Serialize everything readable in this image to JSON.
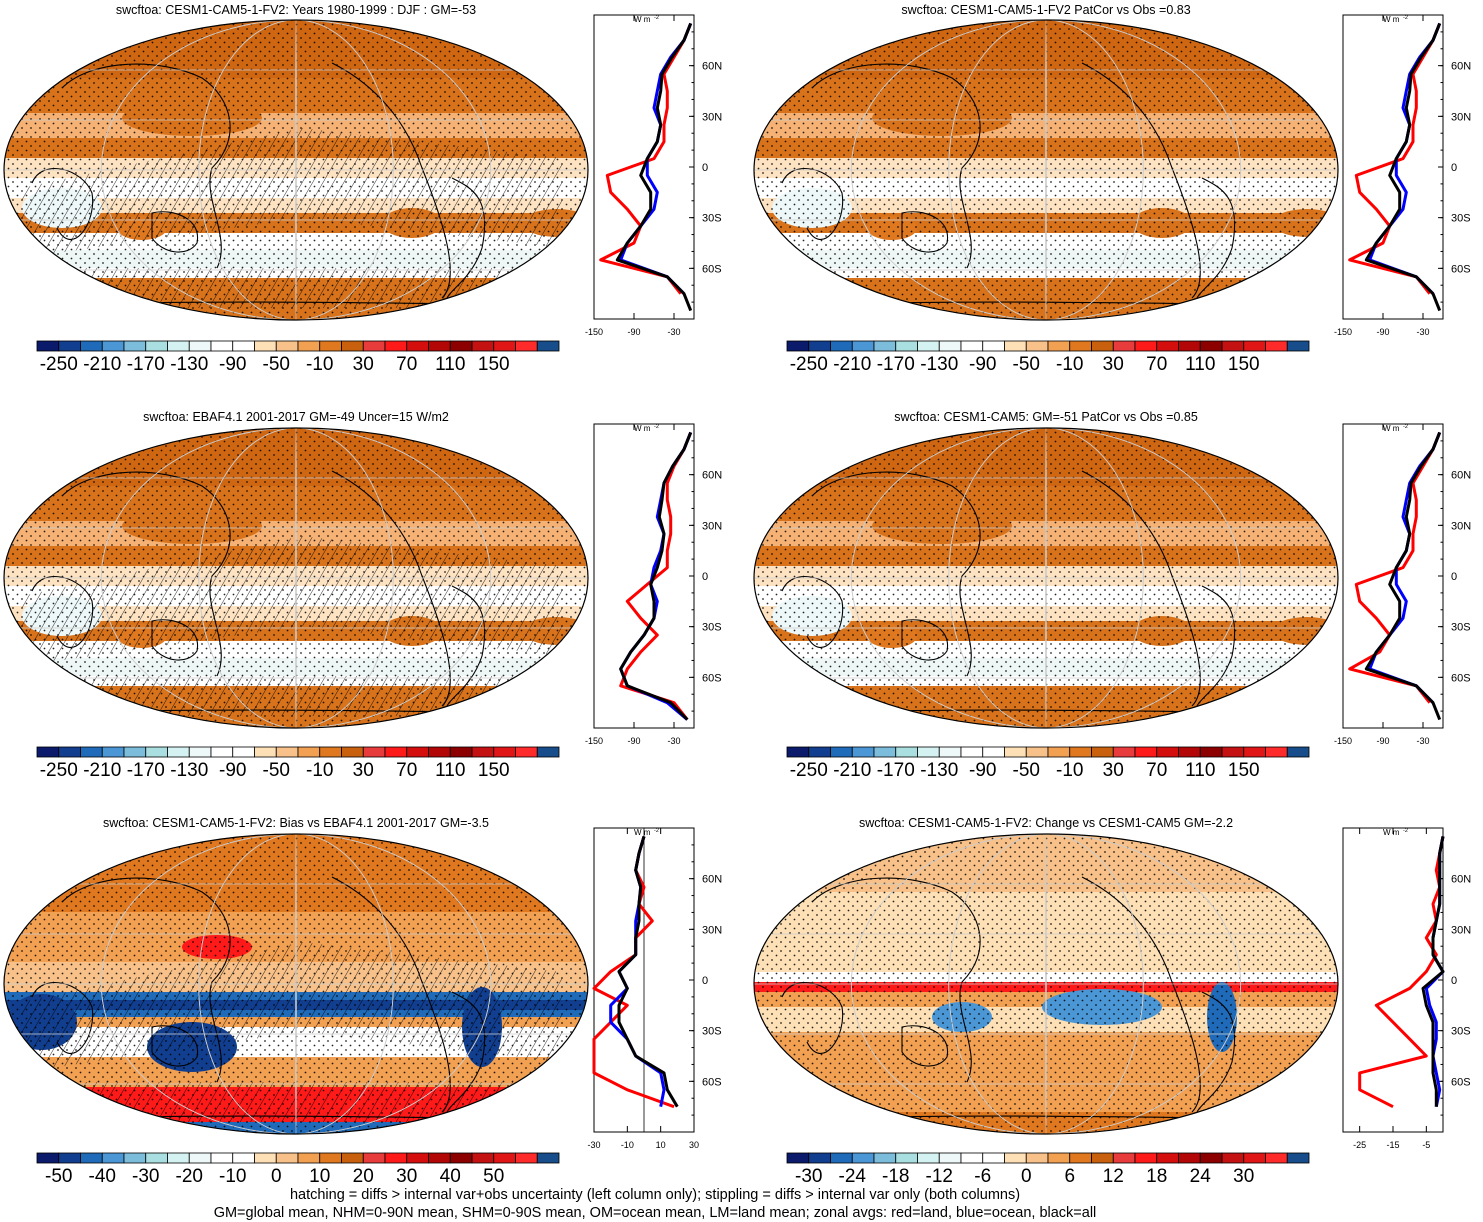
{
  "colors": {
    "land": "#ff0000",
    "ocean": "#0000ff",
    "all": "#000000",
    "palette": [
      "#0b1a6b",
      "#113e8f",
      "#1f6bb9",
      "#4b97d6",
      "#7bbddb",
      "#a9dfe0",
      "#d4f2f2",
      "#eef8f8",
      "#ffffff",
      "#ffffff",
      "#fde0b6",
      "#f7c189",
      "#f2a052",
      "#e0781f",
      "#c9600d",
      "#e83b3b",
      "#ff1a1a",
      "#d40d0d",
      "#b30606",
      "#8c0000",
      "#c41212",
      "#e01616",
      "#ff2a2a",
      "#164d8a"
    ]
  },
  "panels": [
    {
      "id": "model-climatology",
      "title": "swcftoa: CESM1-CAM5-1-FV2: Years 1980-1999 : DJF : GM=-53",
      "colorbar_labels": [
        "-250",
        "-210",
        "-170",
        "-130",
        "-90",
        "-50",
        "-10",
        "30",
        "70",
        "110",
        "150"
      ],
      "zonal_xticks": [
        "-150",
        "-90",
        "-30"
      ],
      "zonal_yticks": [
        "60N",
        "30N",
        "0",
        "30S",
        "60S"
      ],
      "units": "W m",
      "units_sup": "-2"
    },
    {
      "id": "model-patcor",
      "title": "swcftoa: CESM1-CAM5-1-FV2 PatCor vs Obs =0.83",
      "colorbar_labels": [
        "-250",
        "-210",
        "-170",
        "-130",
        "-90",
        "-50",
        "-10",
        "30",
        "70",
        "110",
        "150"
      ],
      "zonal_xticks": [
        "-150",
        "-90",
        "-30"
      ],
      "zonal_yticks": [
        "60N",
        "30N",
        "0",
        "30S",
        "60S"
      ],
      "units": "W m",
      "units_sup": "-2"
    },
    {
      "id": "obs-climatology",
      "title": "swcftoa: EBAF4.1 2001-2017 GM=-49 Uncer=15 W/m2",
      "colorbar_labels": [
        "-250",
        "-210",
        "-170",
        "-130",
        "-90",
        "-50",
        "-10",
        "30",
        "70",
        "110",
        "150"
      ],
      "zonal_xticks": [
        "-150",
        "-90",
        "-30"
      ],
      "zonal_yticks": [
        "60N",
        "30N",
        "0",
        "30S",
        "60S"
      ],
      "units": "W m",
      "units_sup": "-2"
    },
    {
      "id": "reference-model",
      "title": "swcftoa: CESM1-CAM5: GM=-51 PatCor vs Obs =0.85",
      "colorbar_labels": [
        "-250",
        "-210",
        "-170",
        "-130",
        "-90",
        "-50",
        "-10",
        "30",
        "70",
        "110",
        "150"
      ],
      "zonal_xticks": [
        "-150",
        "-90",
        "-30"
      ],
      "zonal_yticks": [
        "60N",
        "30N",
        "0",
        "30S",
        "60S"
      ],
      "units": "W m",
      "units_sup": "-2"
    },
    {
      "id": "bias",
      "title": "swcftoa: CESM1-CAM5-1-FV2: Bias vs EBAF4.1 2001-2017 GM=-3.5",
      "colorbar_labels": [
        "-50",
        "-40",
        "-30",
        "-20",
        "-10",
        "0",
        "10",
        "20",
        "30",
        "40",
        "50"
      ],
      "zonal_xticks": [
        "-30",
        "-10",
        "10",
        "30"
      ],
      "zonal_yticks": [
        "60N",
        "30N",
        "0",
        "30S",
        "60S"
      ],
      "units": "W m",
      "units_sup": "-2"
    },
    {
      "id": "change",
      "title": "swcftoa: CESM1-CAM5-1-FV2: Change vs CESM1-CAM5 GM=-2.2",
      "colorbar_labels": [
        "-30",
        "-24",
        "-18",
        "-12",
        "-6",
        "0",
        "6",
        "12",
        "18",
        "24",
        "30"
      ],
      "zonal_xticks": [
        "-25",
        "-15",
        "-5"
      ],
      "zonal_yticks": [
        "60N",
        "30N",
        "0",
        "30S",
        "60S"
      ],
      "units": "W m",
      "units_sup": "-2"
    }
  ],
  "footer": {
    "line1": "hatching = diffs > internal var+obs uncertainty (left column only); stippling = diffs > internal var only (both columns)",
    "line2": "GM=global mean, NHM=0-90N mean, SHM=0-90S mean, OM=ocean mean, LM=land mean; zonal avgs: red=land, blue=ocean, black=all"
  },
  "chart_data": [
    {
      "type": "heatmap",
      "title": "swcftoa: CESM1-CAM5-1-FV2: Years 1980-1999 : DJF : GM=-53",
      "colorbar_ticks": [
        -250,
        -210,
        -170,
        -130,
        -90,
        -50,
        -10,
        30,
        70,
        110,
        150
      ],
      "zonal_mean": {
        "type": "line",
        "lat": [
          -85,
          -75,
          -65,
          -55,
          -45,
          -35,
          -25,
          -15,
          -5,
          5,
          15,
          25,
          35,
          45,
          55,
          65,
          75,
          85
        ],
        "land": [
          null,
          -20,
          -40,
          -140,
          -90,
          -80,
          -100,
          -125,
          -130,
          -60,
          -45,
          -45,
          -40,
          -40,
          -45,
          -30,
          -15,
          -5
        ],
        "ocean": [
          null,
          -15,
          -40,
          -110,
          -100,
          -80,
          -60,
          -55,
          -70,
          -70,
          -55,
          -50,
          -60,
          -55,
          -50,
          -35,
          -15,
          -5
        ],
        "all": [
          -5,
          -15,
          -40,
          -115,
          -100,
          -80,
          -65,
          -65,
          -80,
          -70,
          -55,
          -50,
          -55,
          -50,
          -48,
          -33,
          -15,
          -5
        ],
        "xlim": [
          -150,
          0
        ],
        "ylim": [
          -90,
          90
        ]
      }
    },
    {
      "type": "heatmap",
      "title": "swcftoa: CESM1-CAM5-1-FV2 PatCor vs Obs =0.83",
      "colorbar_ticks": [
        -250,
        -210,
        -170,
        -130,
        -90,
        -50,
        -10,
        30,
        70,
        110,
        150
      ],
      "zonal_mean": {
        "type": "line",
        "lat": [
          -85,
          -75,
          -65,
          -55,
          -45,
          -35,
          -25,
          -15,
          -5,
          5,
          15,
          25,
          35,
          45,
          55,
          65,
          75,
          85
        ],
        "land": [
          null,
          -20,
          -40,
          -140,
          -90,
          -80,
          -100,
          -125,
          -130,
          -60,
          -45,
          -45,
          -40,
          -40,
          -45,
          -30,
          -15,
          -5
        ],
        "ocean": [
          null,
          -15,
          -40,
          -110,
          -100,
          -80,
          -60,
          -55,
          -70,
          -70,
          -55,
          -50,
          -60,
          -55,
          -50,
          -35,
          -15,
          -5
        ],
        "all": [
          -5,
          -15,
          -40,
          -115,
          -100,
          -80,
          -65,
          -65,
          -80,
          -70,
          -55,
          -50,
          -55,
          -50,
          -48,
          -33,
          -15,
          -5
        ],
        "xlim": [
          -150,
          0
        ],
        "ylim": [
          -90,
          90
        ]
      }
    },
    {
      "type": "heatmap",
      "title": "swcftoa: EBAF4.1 2001-2017 GM=-49 Uncer=15 W/m2",
      "colorbar_ticks": [
        -250,
        -210,
        -170,
        -130,
        -90,
        -50,
        -10,
        30,
        70,
        110,
        150
      ],
      "zonal_mean": {
        "type": "line",
        "lat": [
          -85,
          -75,
          -65,
          -55,
          -45,
          -35,
          -25,
          -15,
          -5,
          5,
          15,
          25,
          35,
          45,
          55,
          65,
          75,
          85
        ],
        "land": [
          -10,
          -30,
          -110,
          -100,
          -80,
          -55,
          -80,
          -100,
          -70,
          -40,
          -40,
          -35,
          -35,
          -40,
          -40,
          -30,
          -15,
          -5
        ],
        "ocean": [
          -10,
          -40,
          -100,
          -110,
          -95,
          -75,
          -60,
          -55,
          -65,
          -60,
          -50,
          -45,
          -55,
          -50,
          -45,
          -32,
          -15,
          -5
        ],
        "all": [
          -10,
          -35,
          -100,
          -110,
          -95,
          -75,
          -60,
          -60,
          -65,
          -55,
          -48,
          -45,
          -52,
          -48,
          -45,
          -32,
          -15,
          -5
        ],
        "xlim": [
          -150,
          0
        ],
        "ylim": [
          -90,
          90
        ]
      }
    },
    {
      "type": "heatmap",
      "title": "swcftoa: CESM1-CAM5: GM=-51 PatCor vs Obs =0.85",
      "colorbar_ticks": [
        -250,
        -210,
        -170,
        -130,
        -90,
        -50,
        -10,
        30,
        70,
        110,
        150
      ],
      "zonal_mean": {
        "type": "line",
        "lat": [
          -85,
          -75,
          -65,
          -55,
          -45,
          -35,
          -25,
          -15,
          -5,
          5,
          15,
          25,
          35,
          45,
          55,
          65,
          75,
          85
        ],
        "land": [
          null,
          -20,
          -40,
          -140,
          -95,
          -80,
          -100,
          -125,
          -130,
          -60,
          -45,
          -45,
          -40,
          -40,
          -45,
          -30,
          -15,
          -5
        ],
        "ocean": [
          null,
          -15,
          -40,
          -110,
          -100,
          -80,
          -60,
          -55,
          -70,
          -70,
          -55,
          -50,
          -60,
          -55,
          -50,
          -35,
          -15,
          -5
        ],
        "all": [
          -5,
          -15,
          -40,
          -115,
          -100,
          -80,
          -65,
          -65,
          -80,
          -70,
          -55,
          -50,
          -55,
          -50,
          -48,
          -33,
          -15,
          -5
        ],
        "xlim": [
          -150,
          0
        ],
        "ylim": [
          -90,
          90
        ]
      }
    },
    {
      "type": "heatmap",
      "title": "swcftoa: CESM1-CAM5-1-FV2: Bias vs EBAF4.1 2001-2017 GM=-3.5",
      "colorbar_ticks": [
        -50,
        -40,
        -30,
        -20,
        -10,
        0,
        10,
        20,
        30,
        40,
        50
      ],
      "zonal_mean": {
        "type": "line",
        "lat": [
          -85,
          -75,
          -65,
          -55,
          -45,
          -35,
          -25,
          -15,
          -5,
          5,
          15,
          25,
          35,
          45,
          55,
          65,
          75,
          85
        ],
        "land": [
          null,
          18,
          -10,
          -40,
          -40,
          -45,
          -20,
          -10,
          -40,
          -20,
          -5,
          -5,
          5,
          -3,
          0,
          -5,
          -3,
          0
        ],
        "ocean": [
          null,
          10,
          12,
          10,
          -5,
          -10,
          -20,
          -20,
          -10,
          -15,
          -5,
          -5,
          -5,
          -3,
          -2,
          -5,
          -3,
          0
        ],
        "all": [
          null,
          20,
          14,
          12,
          -5,
          -10,
          -15,
          -15,
          -10,
          -15,
          -5,
          -5,
          -3,
          -3,
          -2,
          -5,
          -3,
          0
        ],
        "xlim": [
          -30,
          30
        ],
        "ylim": [
          -90,
          90
        ]
      }
    },
    {
      "type": "heatmap",
      "title": "swcftoa: CESM1-CAM5-1-FV2: Change vs CESM1-CAM5 GM=-2.2",
      "colorbar_ticks": [
        -30,
        -24,
        -18,
        -12,
        -6,
        0,
        6,
        12,
        18,
        24,
        30
      ],
      "zonal_mean": {
        "type": "line",
        "lat": [
          -85,
          -75,
          -65,
          -55,
          -45,
          -35,
          -25,
          -15,
          -5,
          5,
          15,
          25,
          35,
          45,
          55,
          65,
          75,
          85
        ],
        "land": [
          null,
          -15,
          -25,
          -25,
          -5,
          -10,
          -15,
          -20,
          -10,
          -5,
          -2,
          -5,
          -2,
          -3,
          -1,
          -2,
          -1,
          0
        ],
        "ocean": [
          null,
          -2,
          -1,
          -2,
          -3,
          -2,
          -2,
          -4,
          -5,
          0,
          -3,
          -3,
          -2,
          -1,
          -1,
          -1,
          -1,
          0
        ],
        "all": [
          null,
          -2,
          -2,
          -3,
          -3,
          -3,
          -3,
          -5,
          -6,
          0,
          -3,
          -3,
          -2,
          -1,
          -1,
          -1,
          -1,
          0
        ],
        "xlim": [
          -30,
          0
        ],
        "ylim": [
          -90,
          90
        ]
      }
    }
  ]
}
